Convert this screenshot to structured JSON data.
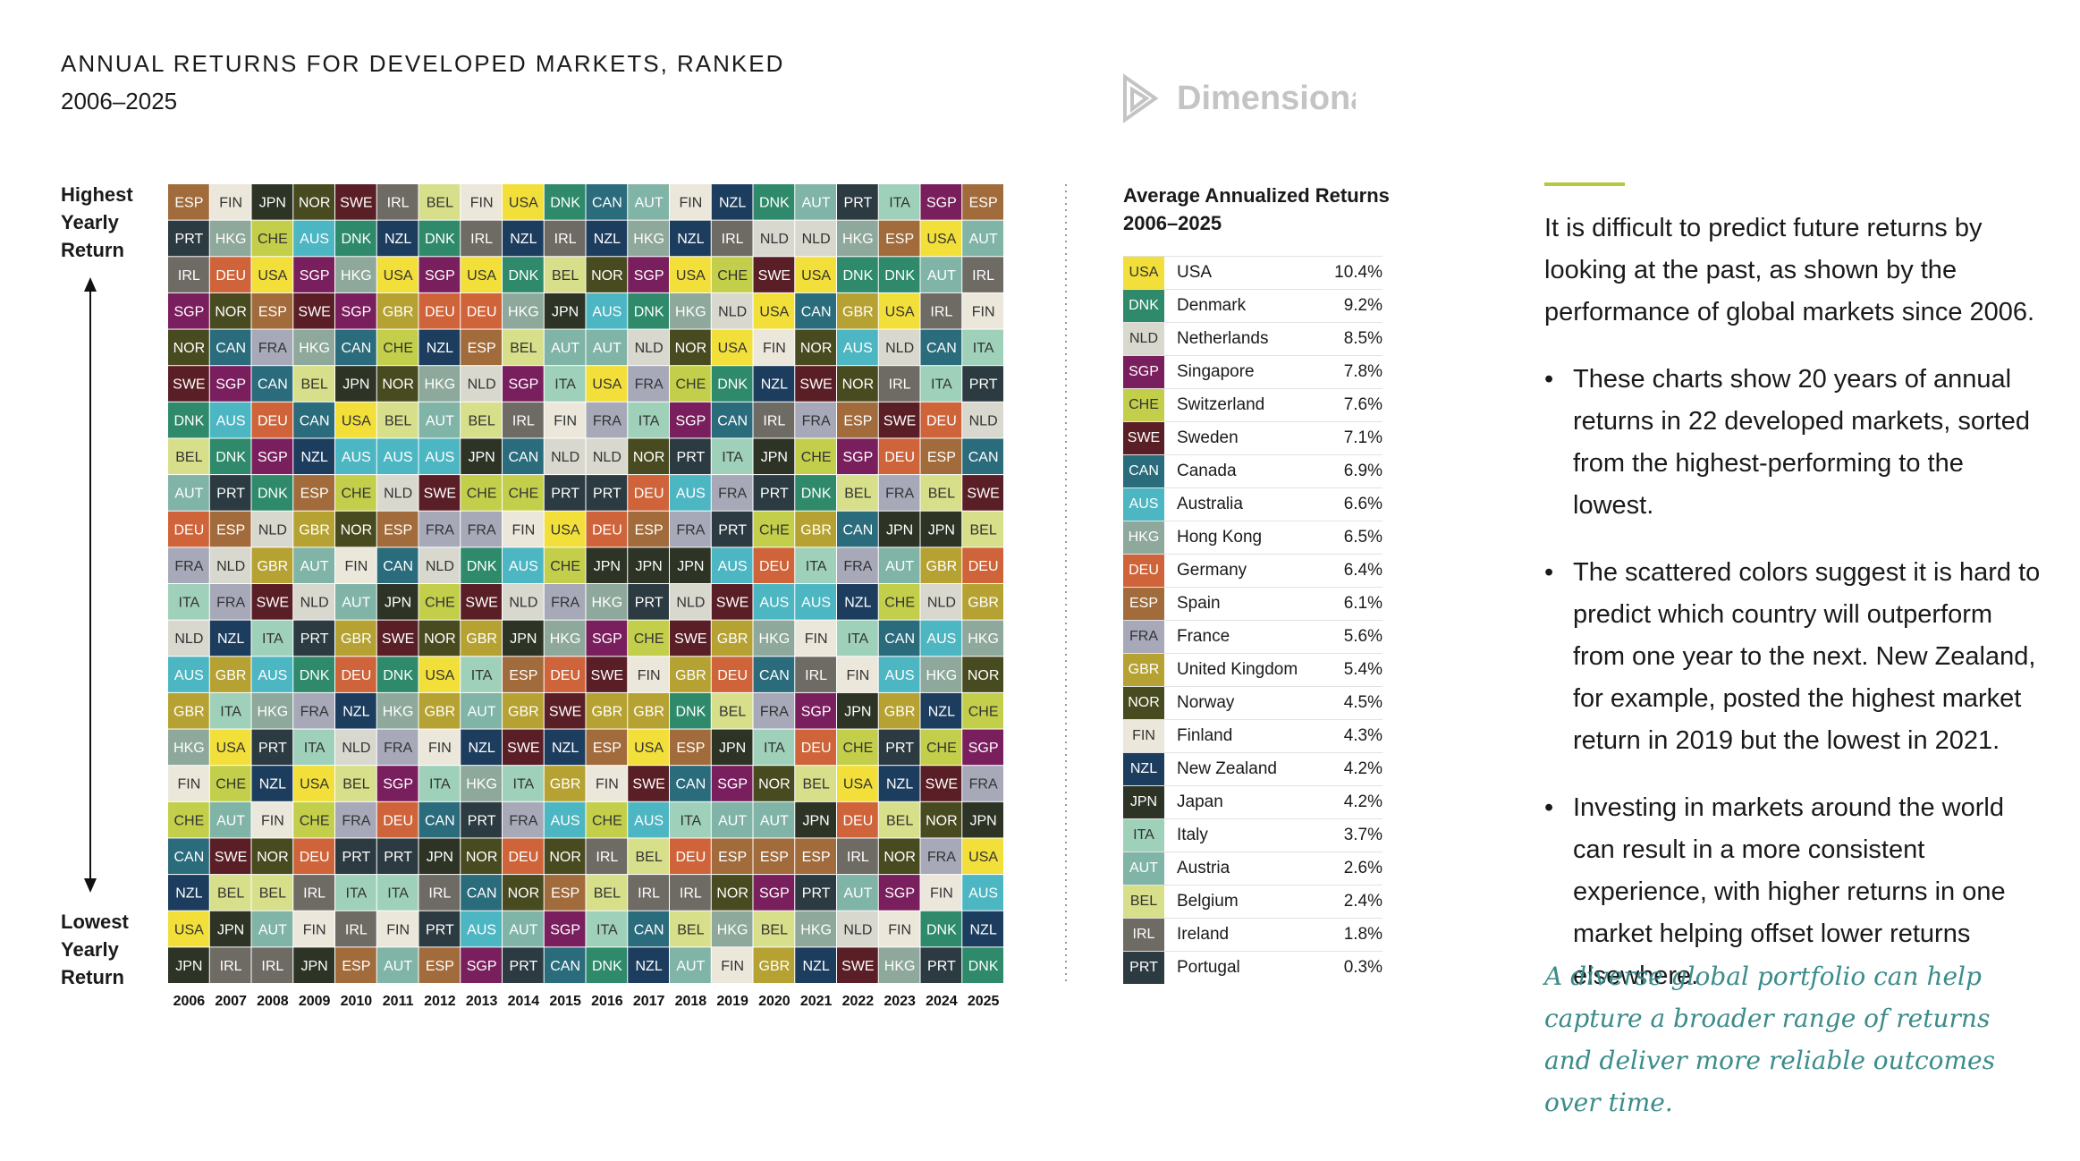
{
  "header": {
    "title": "ANNUAL RETURNS FOR DEVELOPED MARKETS, RANKED",
    "subtitle": "2006–2025",
    "logo": "Dimensional"
  },
  "ranking": {
    "type": "ranking-grid",
    "top_label": "Highest Yearly Return",
    "bottom_label": "Lowest Yearly Return",
    "years": [
      2006,
      2007,
      2008,
      2009,
      2010,
      2011,
      2012,
      2013,
      2014,
      2015,
      2016,
      2017,
      2018,
      2019,
      2020,
      2021,
      2022,
      2023,
      2024,
      2025
    ],
    "rows": [
      [
        "ESP",
        "FIN",
        "JPN",
        "NOR",
        "SWE",
        "IRL",
        "BEL",
        "FIN",
        "USA",
        "DNK",
        "CAN",
        "AUT",
        "FIN",
        "NZL",
        "DNK",
        "AUT",
        "PRT",
        "ITA",
        "SGP",
        "ESP"
      ],
      [
        "PRT",
        "HKG",
        "CHE",
        "AUS",
        "DNK",
        "NZL",
        "DNK",
        "IRL",
        "NZL",
        "IRL",
        "NZL",
        "HKG",
        "NZL",
        "IRL",
        "NLD",
        "NLD",
        "HKG",
        "ESP",
        "USA",
        "AUT"
      ],
      [
        "IRL",
        "DEU",
        "USA",
        "SGP",
        "HKG",
        "USA",
        "SGP",
        "USA",
        "DNK",
        "BEL",
        "NOR",
        "SGP",
        "USA",
        "CHE",
        "SWE",
        "USA",
        "DNK",
        "DNK",
        "AUT",
        "IRL"
      ],
      [
        "SGP",
        "NOR",
        "ESP",
        "SWE",
        "SGP",
        "GBR",
        "DEU",
        "DEU",
        "HKG",
        "JPN",
        "AUS",
        "DNK",
        "HKG",
        "NLD",
        "USA",
        "CAN",
        "GBR",
        "USA",
        "IRL",
        "FIN"
      ],
      [
        "NOR",
        "CAN",
        "FRA",
        "HKG",
        "CAN",
        "CHE",
        "NZL",
        "ESP",
        "BEL",
        "AUT",
        "AUT",
        "NLD",
        "NOR",
        "USA",
        "FIN",
        "NOR",
        "AUS",
        "NLD",
        "CAN",
        "ITA"
      ],
      [
        "SWE",
        "SGP",
        "CAN",
        "BEL",
        "JPN",
        "NOR",
        "HKG",
        "NLD",
        "SGP",
        "ITA",
        "USA",
        "FRA",
        "CHE",
        "DNK",
        "NZL",
        "SWE",
        "NOR",
        "IRL",
        "ITA",
        "PRT"
      ],
      [
        "DNK",
        "AUS",
        "DEU",
        "CAN",
        "USA",
        "BEL",
        "AUT",
        "BEL",
        "IRL",
        "FIN",
        "FRA",
        "ITA",
        "SGP",
        "CAN",
        "IRL",
        "FRA",
        "ESP",
        "SWE",
        "DEU",
        "NLD"
      ],
      [
        "BEL",
        "DNK",
        "SGP",
        "NZL",
        "AUS",
        "AUS",
        "AUS",
        "JPN",
        "CAN",
        "NLD",
        "NLD",
        "NOR",
        "PRT",
        "ITA",
        "JPN",
        "CHE",
        "SGP",
        "DEU",
        "ESP",
        "CAN"
      ],
      [
        "AUT",
        "PRT",
        "DNK",
        "ESP",
        "CHE",
        "NLD",
        "SWE",
        "CHE",
        "CHE",
        "PRT",
        "PRT",
        "DEU",
        "AUS",
        "FRA",
        "PRT",
        "DNK",
        "BEL",
        "FRA",
        "BEL",
        "SWE"
      ],
      [
        "DEU",
        "ESP",
        "NLD",
        "GBR",
        "NOR",
        "ESP",
        "FRA",
        "FRA",
        "FIN",
        "USA",
        "DEU",
        "ESP",
        "FRA",
        "PRT",
        "CHE",
        "GBR",
        "CAN",
        "JPN",
        "JPN",
        "BEL"
      ],
      [
        "FRA",
        "NLD",
        "GBR",
        "AUT",
        "FIN",
        "CAN",
        "NLD",
        "DNK",
        "AUS",
        "CHE",
        "JPN",
        "JPN",
        "JPN",
        "AUS",
        "DEU",
        "ITA",
        "FRA",
        "AUT",
        "GBR",
        "DEU"
      ],
      [
        "ITA",
        "FRA",
        "SWE",
        "NLD",
        "AUT",
        "JPN",
        "CHE",
        "SWE",
        "NLD",
        "FRA",
        "HKG",
        "PRT",
        "NLD",
        "SWE",
        "AUS",
        "AUS",
        "NZL",
        "CHE",
        "NLD",
        "GBR"
      ],
      [
        "NLD",
        "NZL",
        "ITA",
        "PRT",
        "GBR",
        "SWE",
        "NOR",
        "GBR",
        "JPN",
        "HKG",
        "SGP",
        "CHE",
        "SWE",
        "GBR",
        "HKG",
        "FIN",
        "ITA",
        "CAN",
        "AUS",
        "HKG"
      ],
      [
        "AUS",
        "GBR",
        "AUS",
        "DNK",
        "DEU",
        "DNK",
        "USA",
        "ITA",
        "ESP",
        "DEU",
        "SWE",
        "FIN",
        "GBR",
        "DEU",
        "CAN",
        "IRL",
        "FIN",
        "AUS",
        "HKG",
        "NOR"
      ],
      [
        "GBR",
        "ITA",
        "HKG",
        "FRA",
        "NZL",
        "HKG",
        "GBR",
        "AUT",
        "GBR",
        "SWE",
        "GBR",
        "GBR",
        "DNK",
        "BEL",
        "FRA",
        "SGP",
        "JPN",
        "GBR",
        "NZL",
        "CHE"
      ],
      [
        "HKG",
        "USA",
        "PRT",
        "ITA",
        "NLD",
        "FRA",
        "FIN",
        "NZL",
        "SWE",
        "NZL",
        "ESP",
        "USA",
        "ESP",
        "JPN",
        "ITA",
        "DEU",
        "CHE",
        "PRT",
        "CHE",
        "SGP"
      ],
      [
        "FIN",
        "CHE",
        "NZL",
        "USA",
        "BEL",
        "SGP",
        "ITA",
        "HKG",
        "ITA",
        "GBR",
        "FIN",
        "SWE",
        "CAN",
        "SGP",
        "NOR",
        "BEL",
        "USA",
        "NZL",
        "SWE",
        "FRA"
      ],
      [
        "CHE",
        "AUT",
        "FIN",
        "CHE",
        "FRA",
        "DEU",
        "CAN",
        "PRT",
        "FRA",
        "AUS",
        "CHE",
        "AUS",
        "ITA",
        "AUT",
        "AUT",
        "JPN",
        "DEU",
        "BEL",
        "NOR",
        "JPN"
      ],
      [
        "CAN",
        "SWE",
        "NOR",
        "DEU",
        "PRT",
        "PRT",
        "JPN",
        "NOR",
        "DEU",
        "NOR",
        "IRL",
        "BEL",
        "DEU",
        "ESP",
        "ESP",
        "ESP",
        "IRL",
        "NOR",
        "FRA",
        "USA"
      ],
      [
        "NZL",
        "BEL",
        "BEL",
        "IRL",
        "ITA",
        "ITA",
        "IRL",
        "CAN",
        "NOR",
        "ESP",
        "BEL",
        "IRL",
        "IRL",
        "NOR",
        "SGP",
        "PRT",
        "AUT",
        "SGP",
        "FIN",
        "AUS"
      ],
      [
        "USA",
        "JPN",
        "AUT",
        "FIN",
        "IRL",
        "FIN",
        "PRT",
        "AUS",
        "AUT",
        "SGP",
        "ITA",
        "CAN",
        "BEL",
        "HKG",
        "BEL",
        "HKG",
        "NLD",
        "FIN",
        "DNK",
        "NZL"
      ],
      [
        "JPN",
        "IRL",
        "IRL",
        "JPN",
        "ESP",
        "AUT",
        "ESP",
        "SGP",
        "PRT",
        "CAN",
        "DNK",
        "NZL",
        "AUT",
        "FIN",
        "GBR",
        "NZL",
        "SWE",
        "HKG",
        "PRT",
        "DNK"
      ]
    ]
  },
  "colors": {
    "USA": "#f2df3a",
    "DNK": "#2e8a6a",
    "NLD": "#d8d8cf",
    "SGP": "#7a1f5e",
    "CHE": "#c3cf4a",
    "SWE": "#5a1f26",
    "CAN": "#2a6b7c",
    "AUS": "#4db6c3",
    "HKG": "#8ea89c",
    "DEU": "#cf6339",
    "ESP": "#a26b3b",
    "FRA": "#a7a9b9",
    "GBR": "#b6a233",
    "NOR": "#484b1f",
    "FIN": "#ebe7db",
    "NZL": "#1d3d5f",
    "JPN": "#2d3425",
    "ITA": "#9fd1ba",
    "AUT": "#80b4a7",
    "BEL": "#d7df8b",
    "IRL": "#6e6a64",
    "PRT": "#2c3a41"
  },
  "averages": {
    "title": "Average Annualized Returns",
    "subtitle": "2006–2025",
    "rows": [
      {
        "code": "USA",
        "name": "USA",
        "value": "10.4%"
      },
      {
        "code": "DNK",
        "name": "Denmark",
        "value": "9.2%"
      },
      {
        "code": "NLD",
        "name": "Netherlands",
        "value": "8.5%"
      },
      {
        "code": "SGP",
        "name": "Singapore",
        "value": "7.8%"
      },
      {
        "code": "CHE",
        "name": "Switzerland",
        "value": "7.6%"
      },
      {
        "code": "SWE",
        "name": "Sweden",
        "value": "7.1%"
      },
      {
        "code": "CAN",
        "name": "Canada",
        "value": "6.9%"
      },
      {
        "code": "AUS",
        "name": "Australia",
        "value": "6.6%"
      },
      {
        "code": "HKG",
        "name": "Hong Kong",
        "value": "6.5%"
      },
      {
        "code": "DEU",
        "name": "Germany",
        "value": "6.4%"
      },
      {
        "code": "ESP",
        "name": "Spain",
        "value": "6.1%"
      },
      {
        "code": "FRA",
        "name": "France",
        "value": "5.6%"
      },
      {
        "code": "GBR",
        "name": "United Kingdom",
        "value": "5.4%"
      },
      {
        "code": "NOR",
        "name": "Norway",
        "value": "4.5%"
      },
      {
        "code": "FIN",
        "name": "Finland",
        "value": "4.3%"
      },
      {
        "code": "NZL",
        "name": "New Zealand",
        "value": "4.2%"
      },
      {
        "code": "JPN",
        "name": "Japan",
        "value": "4.2%"
      },
      {
        "code": "ITA",
        "name": "Italy",
        "value": "3.7%"
      },
      {
        "code": "AUT",
        "name": "Austria",
        "value": "2.6%"
      },
      {
        "code": "BEL",
        "name": "Belgium",
        "value": "2.4%"
      },
      {
        "code": "IRL",
        "name": "Ireland",
        "value": "1.8%"
      },
      {
        "code": "PRT",
        "name": "Portugal",
        "value": "0.3%"
      }
    ]
  },
  "commentary": {
    "intro": "It is difficult to predict future returns by looking at the past, as shown by the performance of global markets since 2006.",
    "bullets": [
      "These charts show 20 years of annual returns in 22 developed markets, sorted from the highest-performing to the lowest.",
      "The scattered colors suggest it is hard to predict which country will outperform from one year to the next. New Zealand, for example, posted the highest market return in 2019 but the lowest in 2021.",
      "Investing in markets around the world can result in a more consistent experience, with higher returns in one market helping offset lower returns elsewhere."
    ],
    "bullet_mark": "•",
    "closing": "A diverse global portfolio can help capture a broader range of returns and deliver more reliable outcomes over time."
  }
}
